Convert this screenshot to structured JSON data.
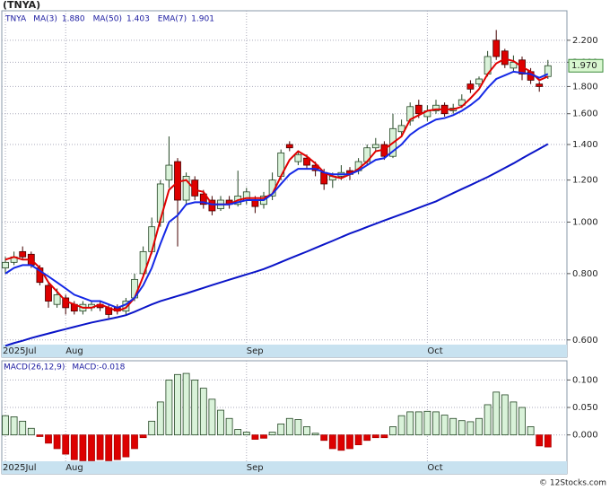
{
  "title": "(TNYA)",
  "footer": "© 12Stocks.com",
  "chart_data": [
    {
      "type": "candlestick",
      "symbol": "TNYA",
      "log_scale": true,
      "grid": true,
      "last_price_label": "1.970",
      "categories": [
        "2025Jul",
        null,
        null,
        null,
        null,
        null,
        null,
        "Aug",
        null,
        null,
        null,
        null,
        null,
        null,
        null,
        null,
        null,
        null,
        null,
        null,
        null,
        null,
        null,
        null,
        null,
        null,
        null,
        null,
        "Sep",
        null,
        null,
        null,
        null,
        null,
        null,
        null,
        null,
        null,
        null,
        null,
        null,
        null,
        null,
        null,
        null,
        null,
        null,
        null,
        null,
        "Oct",
        null,
        null,
        null,
        null,
        null,
        null,
        null,
        null,
        null,
        null,
        null,
        null,
        null,
        null
      ],
      "open": [
        0.82,
        0.84,
        0.88,
        0.87,
        0.82,
        0.76,
        0.7,
        0.72,
        0.7,
        0.68,
        0.69,
        0.7,
        0.69,
        0.69,
        0.68,
        0.72,
        0.8,
        0.88,
        1.0,
        1.2,
        1.3,
        1.1,
        1.2,
        1.13,
        1.1,
        1.06,
        1.1,
        1.08,
        1.1,
        1.1,
        1.08,
        1.12,
        1.22,
        1.4,
        1.3,
        1.32,
        1.28,
        1.24,
        1.2,
        1.22,
        1.25,
        1.25,
        1.3,
        1.38,
        1.4,
        1.33,
        1.48,
        1.55,
        1.66,
        1.58,
        1.62,
        1.66,
        1.62,
        1.66,
        1.82,
        1.82,
        1.9,
        2.2,
        2.1,
        1.95,
        2.02,
        1.92,
        1.82,
        1.88
      ],
      "high": [
        0.86,
        0.88,
        0.9,
        0.88,
        0.83,
        0.77,
        0.75,
        0.73,
        0.71,
        0.71,
        0.71,
        0.71,
        0.7,
        0.7,
        0.72,
        0.8,
        0.9,
        1.02,
        1.2,
        1.45,
        1.32,
        1.24,
        1.22,
        1.15,
        1.12,
        1.12,
        1.12,
        1.25,
        1.16,
        1.12,
        1.14,
        1.24,
        1.37,
        1.42,
        1.36,
        1.34,
        1.3,
        1.26,
        1.24,
        1.28,
        1.27,
        1.32,
        1.4,
        1.44,
        1.42,
        1.6,
        1.56,
        1.68,
        1.7,
        1.66,
        1.7,
        1.68,
        1.67,
        1.74,
        1.85,
        1.88,
        2.1,
        2.3,
        2.12,
        2.06,
        2.05,
        1.95,
        1.84,
        2.02
      ],
      "low": [
        0.8,
        0.83,
        0.85,
        0.82,
        0.76,
        0.69,
        0.69,
        0.67,
        0.67,
        0.67,
        0.68,
        0.68,
        0.66,
        0.67,
        0.67,
        0.71,
        0.79,
        0.87,
        0.98,
        1.16,
        0.9,
        1.08,
        1.1,
        1.06,
        1.03,
        1.05,
        1.06,
        1.07,
        1.08,
        1.04,
        1.06,
        1.1,
        1.2,
        1.36,
        1.28,
        1.26,
        1.22,
        1.15,
        1.16,
        1.2,
        1.2,
        1.23,
        1.28,
        1.36,
        1.31,
        1.32,
        1.45,
        1.52,
        1.57,
        1.55,
        1.6,
        1.58,
        1.6,
        1.64,
        1.75,
        1.8,
        1.88,
        2.02,
        1.95,
        1.92,
        1.85,
        1.82,
        1.76,
        1.86
      ],
      "close": [
        0.84,
        0.86,
        0.86,
        0.83,
        0.77,
        0.71,
        0.73,
        0.69,
        0.68,
        0.7,
        0.7,
        0.69,
        0.67,
        0.68,
        0.71,
        0.78,
        0.88,
        0.98,
        1.18,
        1.28,
        1.1,
        1.22,
        1.12,
        1.08,
        1.05,
        1.1,
        1.08,
        1.12,
        1.14,
        1.07,
        1.12,
        1.2,
        1.35,
        1.38,
        1.34,
        1.28,
        1.25,
        1.18,
        1.22,
        1.24,
        1.23,
        1.3,
        1.38,
        1.4,
        1.33,
        1.5,
        1.52,
        1.65,
        1.6,
        1.62,
        1.66,
        1.6,
        1.64,
        1.7,
        1.78,
        1.86,
        2.05,
        2.05,
        1.98,
        2.0,
        1.9,
        1.85,
        1.8,
        1.97
      ],
      "up_color": "#d9f2d9",
      "down_color": "#dd0000",
      "series": [
        {
          "name": "MA(3)",
          "color": "#e00000",
          "legend_value": "1.880",
          "values": [
            0.85,
            0.86,
            0.85,
            0.85,
            0.82,
            0.77,
            0.74,
            0.71,
            0.7,
            0.69,
            0.69,
            0.7,
            0.69,
            0.68,
            0.69,
            0.72,
            0.79,
            0.88,
            1.01,
            1.15,
            1.19,
            1.2,
            1.15,
            1.14,
            1.08,
            1.08,
            1.08,
            1.1,
            1.11,
            1.11,
            1.11,
            1.13,
            1.22,
            1.31,
            1.36,
            1.33,
            1.29,
            1.24,
            1.22,
            1.21,
            1.23,
            1.26,
            1.3,
            1.36,
            1.37,
            1.41,
            1.45,
            1.56,
            1.59,
            1.62,
            1.63,
            1.63,
            1.63,
            1.65,
            1.71,
            1.78,
            1.9,
            1.99,
            2.03,
            2.01,
            1.96,
            1.92,
            1.85,
            1.88
          ]
        },
        {
          "name": "MA(50)",
          "color": "#0a14c8",
          "legend_value": "1.403",
          "values": [
            0.585,
            0.592,
            0.598,
            0.605,
            0.611,
            0.617,
            0.623,
            0.629,
            0.635,
            0.641,
            0.647,
            0.652,
            0.657,
            0.662,
            0.668,
            0.678,
            0.689,
            0.7,
            0.71,
            0.718,
            0.726,
            0.734,
            0.743,
            0.752,
            0.761,
            0.77,
            0.779,
            0.788,
            0.797,
            0.806,
            0.816,
            0.828,
            0.841,
            0.854,
            0.867,
            0.88,
            0.894,
            0.908,
            0.922,
            0.937,
            0.952,
            0.965,
            0.979,
            0.993,
            1.007,
            1.021,
            1.035,
            1.049,
            1.064,
            1.079,
            1.094,
            1.114,
            1.134,
            1.154,
            1.174,
            1.195,
            1.216,
            1.24,
            1.265,
            1.29,
            1.318,
            1.346,
            1.374,
            1.403
          ]
        },
        {
          "name": "EMA(7)",
          "color": "#1428e6",
          "legend_value": "1.901",
          "values": [
            0.8,
            0.82,
            0.83,
            0.83,
            0.81,
            0.79,
            0.77,
            0.75,
            0.73,
            0.72,
            0.71,
            0.71,
            0.7,
            0.69,
            0.7,
            0.72,
            0.76,
            0.82,
            0.91,
            1.0,
            1.03,
            1.08,
            1.09,
            1.09,
            1.08,
            1.08,
            1.08,
            1.09,
            1.1,
            1.1,
            1.1,
            1.13,
            1.18,
            1.23,
            1.26,
            1.26,
            1.26,
            1.24,
            1.23,
            1.23,
            1.23,
            1.25,
            1.28,
            1.31,
            1.32,
            1.36,
            1.4,
            1.46,
            1.5,
            1.53,
            1.56,
            1.57,
            1.59,
            1.62,
            1.66,
            1.71,
            1.79,
            1.86,
            1.89,
            1.92,
            1.91,
            1.9,
            1.87,
            1.901
          ]
        }
      ],
      "ylim": [
        0.588,
        2.5
      ],
      "yticks": [
        {
          "value": 0.6,
          "label": "0.600"
        },
        {
          "value": 0.8,
          "label": "0.800"
        },
        {
          "value": 1.0,
          "label": "1.000"
        },
        {
          "value": 1.2,
          "label": "1.200"
        },
        {
          "value": 1.4,
          "label": "1.400"
        },
        {
          "value": 1.6,
          "label": "1.600"
        },
        {
          "value": 1.8,
          "label": "1.800"
        },
        {
          "value": 2.0,
          "label": "2.000"
        },
        {
          "value": 2.2,
          "label": "2.200"
        }
      ]
    },
    {
      "type": "bar",
      "legend": "MACD(26,12,9)",
      "macd_label": "MACD:-0.018",
      "grid": true,
      "up_color": "#d9f2d9",
      "down_color": "#dd0000",
      "categories": [
        "2025Jul",
        null,
        null,
        null,
        null,
        null,
        null,
        "Aug",
        null,
        null,
        null,
        null,
        null,
        null,
        null,
        null,
        null,
        null,
        null,
        null,
        null,
        null,
        null,
        null,
        null,
        null,
        null,
        null,
        "Sep",
        null,
        null,
        null,
        null,
        null,
        null,
        null,
        null,
        null,
        null,
        null,
        null,
        null,
        null,
        null,
        null,
        null,
        null,
        null,
        null,
        "Oct",
        null,
        null,
        null,
        null,
        null,
        null,
        null,
        null,
        null,
        null,
        null,
        null,
        null,
        null
      ],
      "values": [
        0.035,
        0.033,
        0.025,
        0.012,
        -0.003,
        -0.015,
        -0.025,
        -0.035,
        -0.045,
        -0.047,
        -0.047,
        -0.045,
        -0.047,
        -0.045,
        -0.04,
        -0.025,
        -0.005,
        0.025,
        0.06,
        0.1,
        0.11,
        0.112,
        0.1,
        0.085,
        0.065,
        0.045,
        0.03,
        0.01,
        0.005,
        -0.008,
        -0.006,
        0.005,
        0.02,
        0.03,
        0.028,
        0.015,
        0.003,
        -0.01,
        -0.025,
        -0.028,
        -0.025,
        -0.018,
        -0.01,
        -0.005,
        -0.005,
        0.015,
        0.035,
        0.042,
        0.042,
        0.043,
        0.042,
        0.036,
        0.03,
        0.026,
        0.024,
        0.03,
        0.055,
        0.078,
        0.073,
        0.06,
        0.05,
        0.015,
        -0.02,
        -0.022
      ],
      "ylim": [
        -0.048,
        0.135
      ],
      "yticks": [
        {
          "value": 0.0,
          "label": "0.000"
        },
        {
          "value": 0.05,
          "label": "0.050"
        },
        {
          "value": 0.1,
          "label": "0.100"
        }
      ]
    }
  ]
}
